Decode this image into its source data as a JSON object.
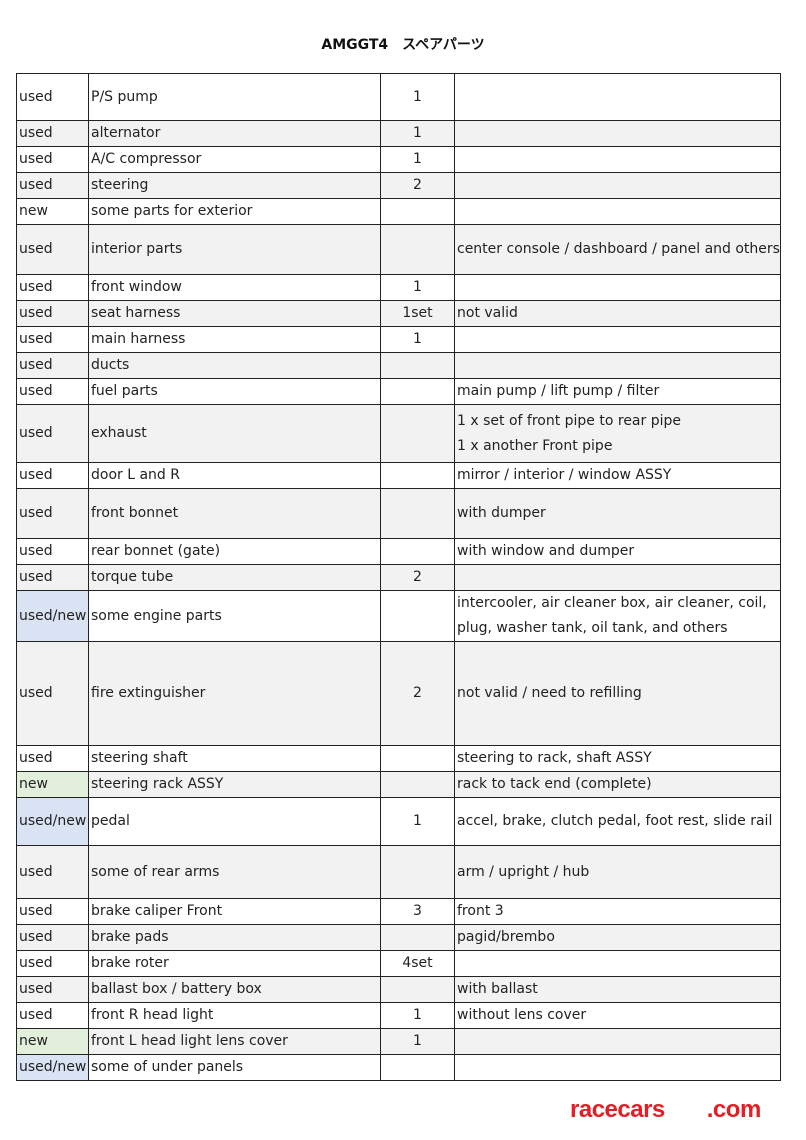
{
  "title": "AMGGT4　スペアパーツ",
  "colors": {
    "used_new_highlight": "#dae3f3",
    "new_highlight": "#e2efda",
    "watermark": "#e31e24"
  },
  "rows": [
    {
      "condition": "used",
      "part": "P/S pump",
      "qty": "1",
      "notes": []
    },
    {
      "condition": "used",
      "part": "alternator",
      "qty": "1",
      "notes": []
    },
    {
      "condition": "used",
      "part": "A/C compressor",
      "qty": "1",
      "notes": []
    },
    {
      "condition": "used",
      "part": "steering",
      "qty": "2",
      "notes": []
    },
    {
      "condition": "new",
      "part": "some parts for exterior",
      "qty": "",
      "notes": []
    },
    {
      "condition": "used",
      "part": "interior parts",
      "qty": "",
      "notes": [
        "center console / dashboard / panel and others"
      ]
    },
    {
      "condition": "used",
      "part": "front window",
      "qty": "1",
      "notes": []
    },
    {
      "condition": "used",
      "part": "seat harness",
      "qty": "1set",
      "notes": [
        "not valid"
      ]
    },
    {
      "condition": "used",
      "part": "main harness",
      "qty": "1",
      "notes": []
    },
    {
      "condition": "used",
      "part": "ducts",
      "qty": "",
      "notes": []
    },
    {
      "condition": "used",
      "part": "fuel parts",
      "qty": "",
      "notes": [
        "main pump / lift pump / filter"
      ]
    },
    {
      "condition": "used",
      "part": "exhaust",
      "qty": "",
      "notes": [
        "1 x set of front pipe to rear pipe",
        "1 x another Front pipe"
      ]
    },
    {
      "condition": "used",
      "part": "door L and R",
      "qty": "",
      "notes": [
        "mirror / interior / window ASSY"
      ]
    },
    {
      "condition": "used",
      "part": "front bonnet",
      "qty": "",
      "notes": [
        "with dumper"
      ]
    },
    {
      "condition": "used",
      "part": "rear bonnet (gate)",
      "qty": "",
      "notes": [
        "with window and dumper"
      ]
    },
    {
      "condition": "used",
      "part": "torque tube",
      "qty": "2",
      "notes": []
    },
    {
      "condition": "used/new",
      "highlight": "blue",
      "part": "some engine parts",
      "qty": "",
      "notes": [
        "intercooler, air cleaner box, air cleaner, coil,",
        "plug, washer tank, oil tank, and others"
      ]
    },
    {
      "condition": "used",
      "part": "fire extinguisher",
      "qty": "2",
      "notes": [
        "not valid / need to refilling"
      ]
    },
    {
      "condition": "used",
      "part": "steering shaft",
      "qty": "",
      "notes": [
        "steering to rack, shaft ASSY"
      ]
    },
    {
      "condition": "new",
      "highlight": "green",
      "part": "steering rack ASSY",
      "qty": "",
      "notes": [
        "rack to tack end (complete)"
      ]
    },
    {
      "condition": "used/new",
      "highlight": "blue",
      "part": "pedal",
      "qty": "1",
      "notes": [
        "accel, brake, clutch pedal, foot rest, slide rail"
      ]
    },
    {
      "condition": "used",
      "part": "some of rear arms",
      "qty": "",
      "notes": [
        "arm / upright / hub"
      ]
    },
    {
      "condition": "used",
      "part": "brake caliper Front",
      "qty": "3",
      "notes": [
        "front 3"
      ]
    },
    {
      "condition": "used",
      "part": "brake pads",
      "qty": "",
      "notes": [
        "pagid/brembo"
      ]
    },
    {
      "condition": "used",
      "part": "brake roter",
      "qty": "4set",
      "notes": []
    },
    {
      "condition": "used",
      "part": "ballast box / battery box",
      "qty": "",
      "notes": [
        "with ballast"
      ]
    },
    {
      "condition": "used",
      "part": "front R head light",
      "qty": "1",
      "notes": [
        "without lens cover"
      ]
    },
    {
      "condition": "new",
      "highlight": "green",
      "part": "front L head light lens cover",
      "qty": "1",
      "notes": []
    },
    {
      "condition": "used/new",
      "highlight": "blue",
      "part": "some of under panels",
      "qty": "",
      "notes": []
    }
  ],
  "watermark": {
    "left": "racecars",
    "right": ".com"
  }
}
